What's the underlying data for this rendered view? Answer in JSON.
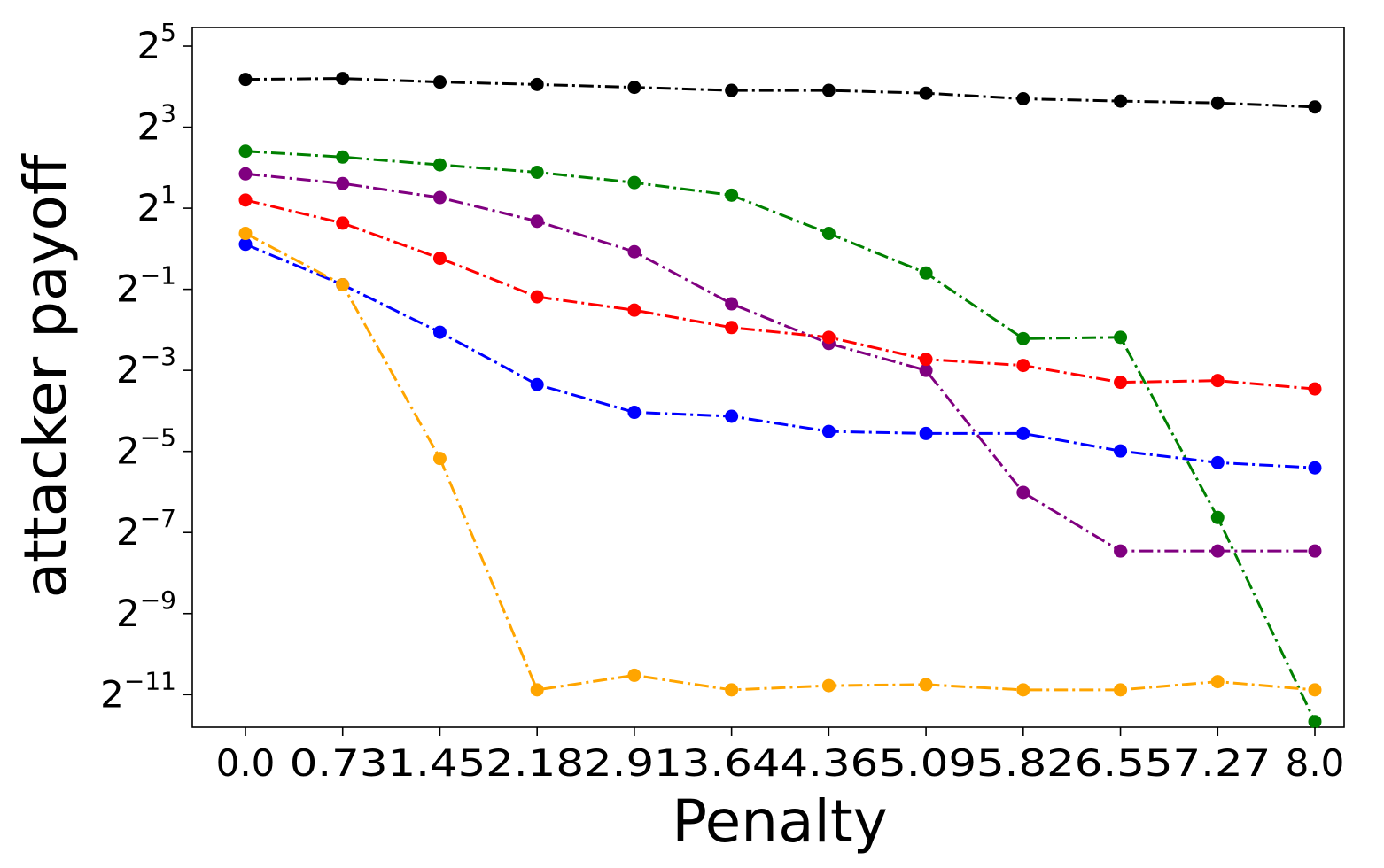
{
  "chart_data": {
    "type": "line",
    "title": "",
    "xlabel": "Penalty",
    "ylabel": "attacker payoff",
    "yscale": "log2",
    "ylim": [
      0.00028,
      44
    ],
    "grid": false,
    "legend": "none",
    "x": [
      "0.0",
      "0.73",
      "1.45",
      "2.18",
      "2.91",
      "3.64",
      "4.36",
      "5.09",
      "5.82",
      "6.55",
      "7.27",
      "8.0"
    ],
    "x_tick_labels": [
      "0.0",
      "0.731.452.182.913.644.365.095.826.557.27",
      "8.0"
    ],
    "y_ticks": [
      {
        "base": "2",
        "exp": "5"
      },
      {
        "base": "2",
        "exp": "3"
      },
      {
        "base": "2",
        "exp": "1"
      },
      {
        "base": "2",
        "exp": "−1"
      },
      {
        "base": "2",
        "exp": "−3"
      },
      {
        "base": "2",
        "exp": "−5"
      },
      {
        "base": "2",
        "exp": "−7"
      },
      {
        "base": "2",
        "exp": "−9"
      },
      {
        "base": "2",
        "exp": "−11"
      }
    ],
    "series": [
      {
        "color": "#000000",
        "linestyle": "dash-dot",
        "marker": "circle",
        "values": [
          18.1,
          18.4,
          17.3,
          16.6,
          15.8,
          15.0,
          15.0,
          14.3,
          13.0,
          12.5,
          12.1,
          11.3
        ]
      },
      {
        "color": "#008000",
        "linestyle": "dash-dot",
        "marker": "circle",
        "values": [
          5.3,
          4.8,
          4.2,
          3.7,
          3.1,
          2.5,
          1.3,
          0.66,
          0.215,
          0.22,
          0.0101,
          0.000308
        ]
      },
      {
        "color": "#800080",
        "linestyle": "dash-dot",
        "marker": "circle",
        "values": [
          3.6,
          3.05,
          2.4,
          1.6,
          0.95,
          0.39,
          0.198,
          0.125,
          0.0155,
          0.00569,
          0.00569,
          0.00569
        ]
      },
      {
        "color": "#ff0000",
        "linestyle": "dash-dot",
        "marker": "circle",
        "values": [
          2.3,
          1.55,
          0.85,
          0.44,
          0.35,
          0.26,
          0.22,
          0.151,
          0.136,
          0.102,
          0.105,
          0.091
        ]
      },
      {
        "color": "#0000ff",
        "linestyle": "dash-dot",
        "marker": "circle",
        "values": [
          1.08,
          0.54,
          0.24,
          0.098,
          0.061,
          0.057,
          0.044,
          0.0425,
          0.0425,
          0.0315,
          0.0258,
          0.0236
        ]
      },
      {
        "color": "#ffa500",
        "linestyle": "dash-dot",
        "marker": "circle",
        "values": [
          1.3,
          0.54,
          0.0277,
          0.00053,
          0.00068,
          0.00053,
          0.00057,
          0.00058,
          0.00053,
          0.00053,
          0.00061,
          0.00053
        ]
      }
    ]
  }
}
